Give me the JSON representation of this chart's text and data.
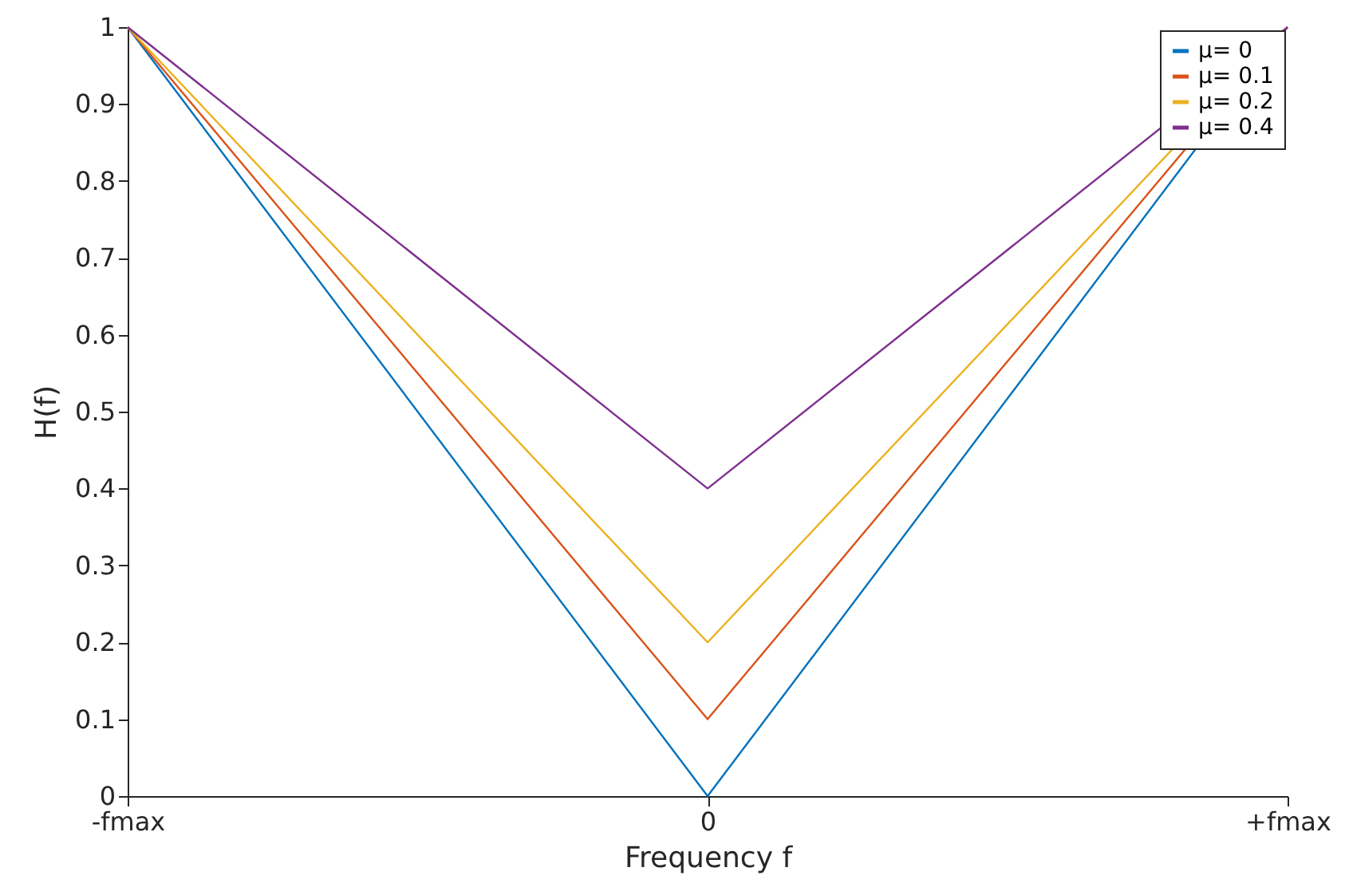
{
  "chart_data": {
    "type": "line",
    "xlabel": "Frequency f",
    "ylabel": "H(f)",
    "categories": [
      "-fmax",
      "0",
      "+fmax"
    ],
    "series": [
      {
        "name": "μ= 0",
        "color": "#0072bd",
        "values": [
          1,
          0,
          1
        ]
      },
      {
        "name": "μ= 0.1",
        "color": "#d95319",
        "values": [
          1,
          0.1,
          1
        ]
      },
      {
        "name": "μ= 0.2",
        "color": "#edb120",
        "values": [
          1,
          0.2,
          1
        ]
      },
      {
        "name": "μ= 0.4",
        "color": "#7e2f8e",
        "values": [
          1,
          0.4,
          1
        ]
      }
    ],
    "ylim": [
      0,
      1
    ],
    "yticks": [
      0,
      0.1,
      0.2,
      0.3,
      0.4,
      0.5,
      0.6,
      0.7,
      0.8,
      0.9,
      1
    ],
    "grid": false,
    "legend": "top right"
  }
}
